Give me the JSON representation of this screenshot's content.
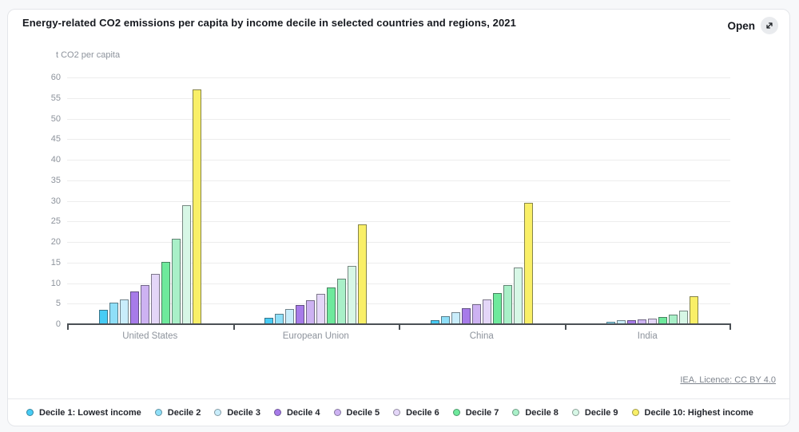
{
  "card": {
    "title": "Energy-related CO2 emissions per capita by income decile in selected countries and regions, 2021",
    "open_label": "Open",
    "attribution": "IEA. Licence: CC BY 4.0"
  },
  "chart_data": {
    "type": "bar",
    "title": "Energy-related CO2 emissions per capita by income decile in selected countries and regions, 2021",
    "xlabel": "",
    "ylabel": "t CO2 per capita",
    "ylim": [
      0,
      60
    ],
    "yticks": [
      0,
      5,
      10,
      15,
      20,
      25,
      30,
      35,
      40,
      45,
      50,
      55,
      60
    ],
    "grid": true,
    "legend_position": "bottom",
    "categories": [
      "United States",
      "European Union",
      "China",
      "India"
    ],
    "series": [
      {
        "name": "Decile 1: Lowest income",
        "color": "#47CCF5",
        "values": [
          3.5,
          1.6,
          1.0,
          0.3
        ]
      },
      {
        "name": "Decile 2",
        "color": "#8FDFF8",
        "values": [
          5.3,
          2.6,
          1.9,
          0.6
        ]
      },
      {
        "name": "Decile 3",
        "color": "#C9EDFB",
        "values": [
          6.1,
          3.7,
          2.9,
          0.9
        ]
      },
      {
        "name": "Decile 4",
        "color": "#A77BE9",
        "values": [
          7.9,
          4.7,
          3.9,
          1.0
        ]
      },
      {
        "name": "Decile 5",
        "color": "#CDB2F2",
        "values": [
          9.6,
          5.8,
          4.8,
          1.2
        ]
      },
      {
        "name": "Decile 6",
        "color": "#E4D6F8",
        "values": [
          12.3,
          7.3,
          6.1,
          1.4
        ]
      },
      {
        "name": "Decile 7",
        "color": "#6EE99C",
        "values": [
          15.2,
          8.9,
          7.6,
          1.8
        ]
      },
      {
        "name": "Decile 8",
        "color": "#A9F0C8",
        "values": [
          20.8,
          11.0,
          9.6,
          2.4
        ]
      },
      {
        "name": "Decile 9",
        "color": "#D7F7E6",
        "values": [
          28.9,
          14.1,
          13.7,
          3.3
        ]
      },
      {
        "name": "Decile 10: Highest income",
        "color": "#F9EF67",
        "values": [
          57.0,
          24.2,
          29.6,
          6.9
        ]
      }
    ]
  }
}
